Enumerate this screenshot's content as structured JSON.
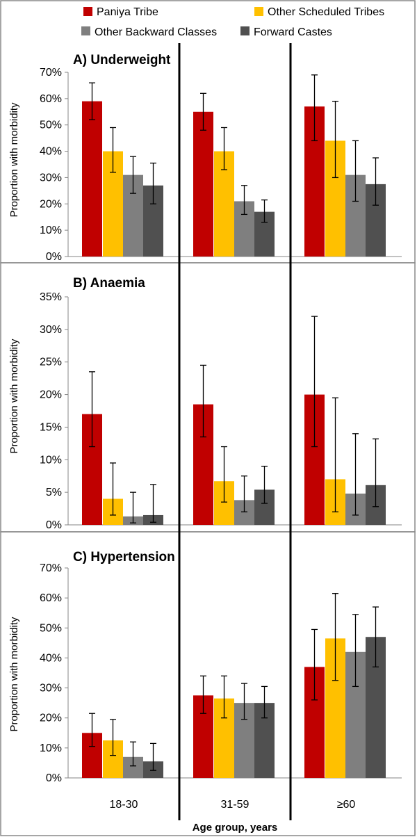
{
  "chart_data": {
    "type": "bar",
    "x_label": "Age group, years",
    "categories": [
      "18-30",
      "31-59",
      "≥60"
    ],
    "legend": [
      {
        "name": "Paniya Tribe",
        "color": "#C00000"
      },
      {
        "name": "Other Scheduled Tribes",
        "color": "#FFC000"
      },
      {
        "name": "Other Backward Classes",
        "color": "#7F7F7F"
      },
      {
        "name": "Forward Castes",
        "color": "#505050"
      }
    ],
    "panels": [
      {
        "title": "A) Underweight",
        "ylabel": "Proportion with morbidity",
        "ylim": [
          0,
          70
        ],
        "yticks": [
          0,
          10,
          20,
          30,
          40,
          50,
          60,
          70
        ],
        "ytick_labels": [
          "0%",
          "10%",
          "20%",
          "30%",
          "40%",
          "50%",
          "60%",
          "70%"
        ],
        "series": [
          {
            "name": "Paniya Tribe",
            "values": [
              59,
              55,
              57
            ],
            "err_low": [
              52,
              48,
              44
            ],
            "err_high": [
              66,
              62,
              69
            ]
          },
          {
            "name": "Other Scheduled Tribes",
            "values": [
              40,
              40,
              44
            ],
            "err_low": [
              32,
              33,
              30
            ],
            "err_high": [
              49,
              49,
              59
            ]
          },
          {
            "name": "Other Backward Classes",
            "values": [
              31,
              21,
              31
            ],
            "err_low": [
              24,
              16,
              21
            ],
            "err_high": [
              38,
              27,
              44
            ]
          },
          {
            "name": "Forward Castes",
            "values": [
              27,
              17,
              27.5
            ],
            "err_low": [
              20,
              13,
              19.5
            ],
            "err_high": [
              35.5,
              21.5,
              37.5
            ]
          }
        ]
      },
      {
        "title": "B) Anaemia",
        "ylabel": "Proportion with morbidity",
        "ylim": [
          0,
          35
        ],
        "yticks": [
          0,
          5,
          10,
          15,
          20,
          25,
          30,
          35
        ],
        "ytick_labels": [
          "0%",
          "5%",
          "10%",
          "15%",
          "20%",
          "25%",
          "30%",
          "35%"
        ],
        "series": [
          {
            "name": "Paniya Tribe",
            "values": [
              17,
              18.5,
              20
            ],
            "err_low": [
              12,
              13.5,
              12
            ],
            "err_high": [
              23.5,
              24.5,
              32
            ]
          },
          {
            "name": "Other Scheduled Tribes",
            "values": [
              4,
              6.7,
              7
            ],
            "err_low": [
              1.5,
              3.5,
              2
            ],
            "err_high": [
              9.5,
              12,
              19.5
            ]
          },
          {
            "name": "Other Backward Classes",
            "values": [
              1.3,
              3.8,
              4.8
            ],
            "err_low": [
              0.3,
              2,
              1.5
            ],
            "err_high": [
              5,
              7.5,
              14
            ]
          },
          {
            "name": "Forward Castes",
            "values": [
              1.5,
              5.4,
              6.1
            ],
            "err_low": [
              0.4,
              3.3,
              2.8
            ],
            "err_high": [
              6.2,
              9,
              13.2
            ]
          }
        ]
      },
      {
        "title": "C) Hypertension",
        "ylabel": "Proportion with morbidity",
        "ylim": [
          0,
          70
        ],
        "yticks": [
          0,
          10,
          20,
          30,
          40,
          50,
          60,
          70
        ],
        "ytick_labels": [
          "0%",
          "10%",
          "20%",
          "30%",
          "40%",
          "50%",
          "60%",
          "70%"
        ],
        "series": [
          {
            "name": "Paniya Tribe",
            "values": [
              15,
              27.5,
              37
            ],
            "err_low": [
              10.5,
              21.5,
              26
            ],
            "err_high": [
              21.5,
              34,
              49.5
            ]
          },
          {
            "name": "Other Scheduled Tribes",
            "values": [
              12.5,
              26.5,
              46.5
            ],
            "err_low": [
              7.5,
              20,
              32.5
            ],
            "err_high": [
              19.5,
              34,
              61.5
            ]
          },
          {
            "name": "Other Backward Classes",
            "values": [
              7,
              25,
              42
            ],
            "err_low": [
              4,
              19.5,
              30.5
            ],
            "err_high": [
              12,
              31.5,
              54.5
            ]
          },
          {
            "name": "Forward Castes",
            "values": [
              5.5,
              25,
              47
            ],
            "err_low": [
              2.5,
              20,
              37
            ],
            "err_high": [
              11.5,
              30.5,
              57
            ]
          }
        ]
      }
    ]
  }
}
